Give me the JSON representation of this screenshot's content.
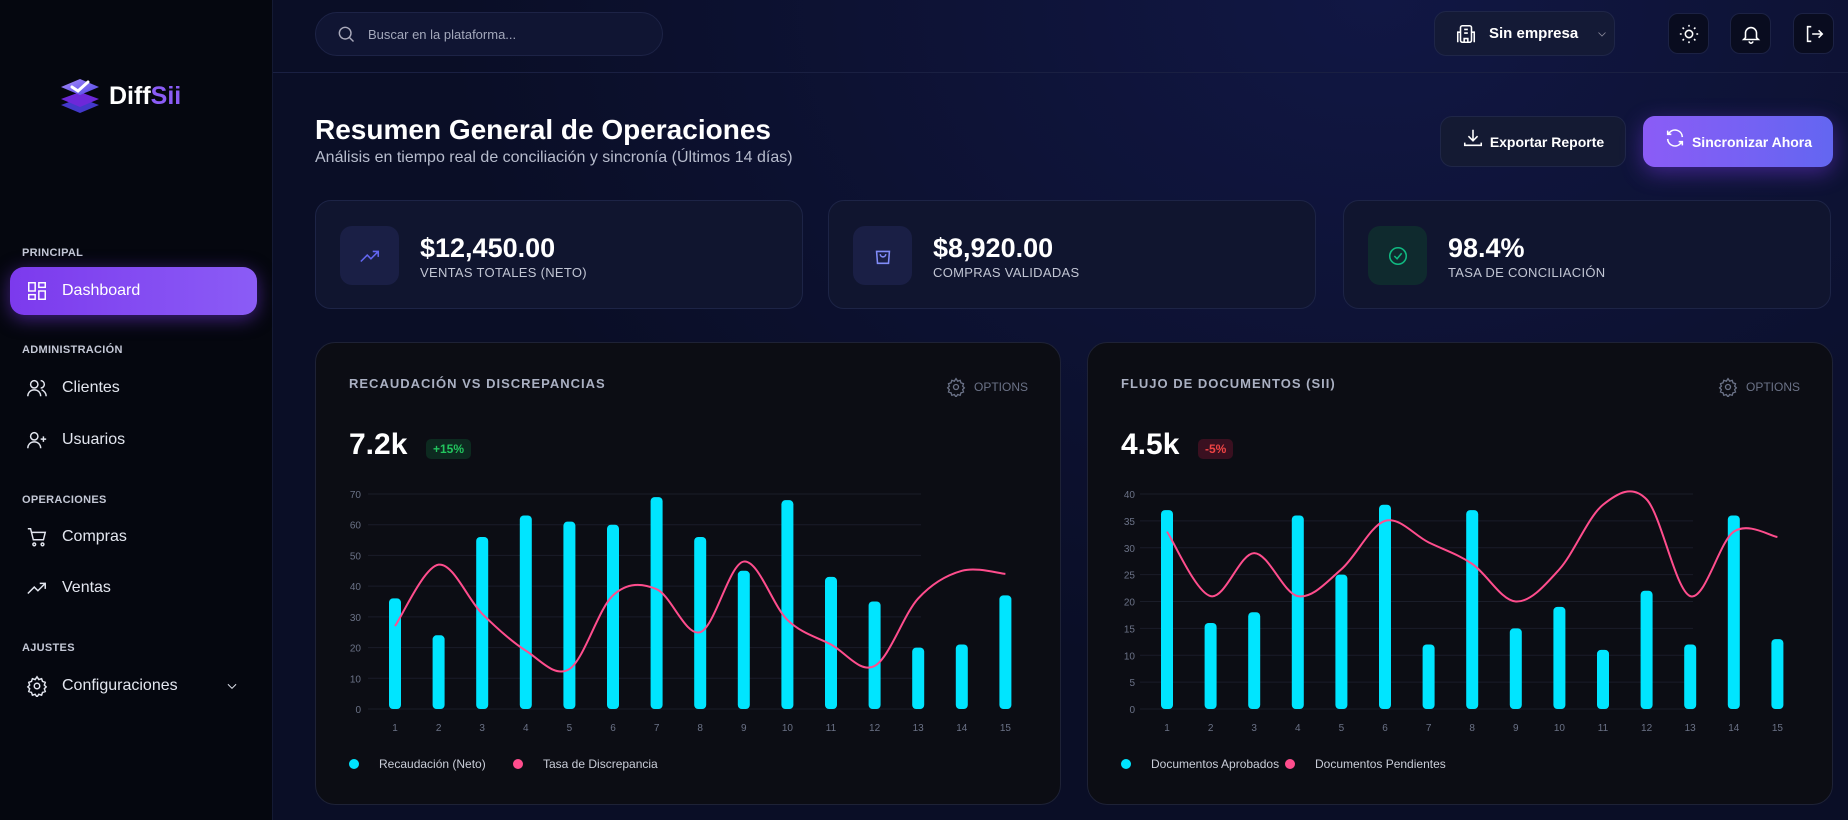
{
  "brand": {
    "name_part1": "Diff",
    "name_part2": "Sii"
  },
  "sidebar": {
    "sections": [
      {
        "label": "PRINCIPAL",
        "items": [
          {
            "label": "Dashboard",
            "icon": "grid-icon",
            "active": true
          }
        ]
      },
      {
        "label": "ADMINISTRACIÓN",
        "items": [
          {
            "label": "Clientes",
            "icon": "users-icon"
          },
          {
            "label": "Usuarios",
            "icon": "user-plus-icon"
          }
        ]
      },
      {
        "label": "OPERACIONES",
        "items": [
          {
            "label": "Compras",
            "icon": "cart-icon"
          },
          {
            "label": "Ventas",
            "icon": "trending-up-icon"
          }
        ]
      },
      {
        "label": "AJUSTES",
        "items": [
          {
            "label": "Configuraciones",
            "icon": "gear-icon",
            "expandable": true
          }
        ]
      }
    ]
  },
  "header": {
    "search_placeholder": "Buscar en la plataforma...",
    "company": "Sin empresa"
  },
  "page": {
    "title": "Resumen General de Operaciones",
    "subtitle": "Análisis en tiempo real de conciliación y sincronía (Últimos 14 días)",
    "export_label": "Exportar Reporte",
    "sync_label": "Sincronizar Ahora"
  },
  "kpis": [
    {
      "value": "$12,450.00",
      "label": "VENTAS TOTALES (NETO)",
      "icon": "trending-up-icon",
      "color": "#6366f1"
    },
    {
      "value": "$8,920.00",
      "label": "COMPRAS VALIDADAS",
      "icon": "shopping-bag-icon",
      "color": "#818cf8"
    },
    {
      "value": "98.4%",
      "label": "TASA DE CONCILIACIÓN",
      "icon": "check-circle-icon",
      "color": "#10b981"
    }
  ],
  "colors": {
    "accent": "#8b5cf6",
    "bars": "#00e5ff",
    "line": "#ff4d8d",
    "positive": "#22c55e",
    "negative": "#ef4444"
  },
  "charts_meta": [
    {
      "title": "RECAUDACIÓN VS DISCREPANCIAS",
      "options": "OPTIONS",
      "big": "7.2k",
      "delta": "+15%",
      "delta_positive": true
    },
    {
      "title": "FLUJO DE DOCUMENTOS (SII)",
      "options": "OPTIONS",
      "big": "4.5k",
      "delta": "-5%",
      "delta_positive": false
    }
  ],
  "chart_data": [
    {
      "type": "bar",
      "categories": [
        "1",
        "2",
        "3",
        "4",
        "5",
        "6",
        "7",
        "8",
        "9",
        "10",
        "11",
        "12",
        "13",
        "14",
        "15"
      ],
      "ylim": [
        0,
        70
      ],
      "yticks": [
        0,
        10,
        20,
        30,
        40,
        50,
        60,
        70
      ],
      "grid": true,
      "legend": "bottom-left",
      "series": [
        {
          "name": "Recaudación (Neto)",
          "type": "bar",
          "color": "#00e5ff",
          "values": [
            36,
            24,
            56,
            63,
            61,
            60,
            69,
            56,
            45,
            68,
            43,
            35,
            20,
            21,
            37
          ]
        },
        {
          "name": "Tasa de Discrepancia",
          "type": "line",
          "color": "#ff4d8d",
          "values": [
            27,
            47,
            31,
            19,
            13,
            37,
            39,
            25,
            48,
            29,
            21,
            14,
            36,
            45,
            44
          ]
        }
      ]
    },
    {
      "type": "bar",
      "categories": [
        "1",
        "2",
        "3",
        "4",
        "5",
        "6",
        "7",
        "8",
        "9",
        "10",
        "11",
        "12",
        "13",
        "14",
        "15"
      ],
      "ylim": [
        0,
        40
      ],
      "yticks": [
        0,
        5,
        10,
        15,
        20,
        25,
        30,
        35,
        40
      ],
      "grid": true,
      "legend": "bottom-left",
      "series": [
        {
          "name": "Documentos Aprobados",
          "type": "bar",
          "color": "#00e5ff",
          "values": [
            37,
            16,
            18,
            36,
            25,
            38,
            12,
            37,
            15,
            19,
            11,
            22,
            12,
            36,
            13
          ]
        },
        {
          "name": "Documentos Pendientes",
          "type": "line",
          "color": "#ff4d8d",
          "values": [
            33,
            21,
            29,
            21,
            26,
            35,
            31,
            27,
            20,
            26,
            38,
            39,
            21,
            33,
            32
          ]
        }
      ]
    }
  ]
}
